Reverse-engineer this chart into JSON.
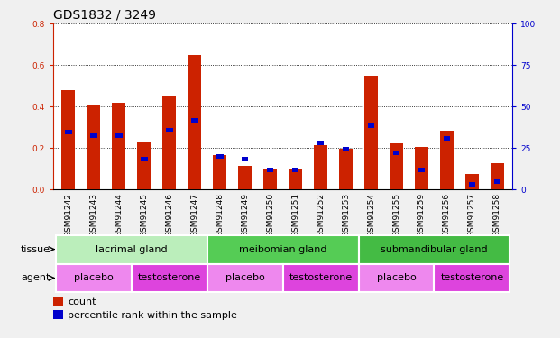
{
  "title": "GDS1832 / 3249",
  "samples": [
    "GSM91242",
    "GSM91243",
    "GSM91244",
    "GSM91245",
    "GSM91246",
    "GSM91247",
    "GSM91248",
    "GSM91249",
    "GSM91250",
    "GSM91251",
    "GSM91252",
    "GSM91253",
    "GSM91254",
    "GSM91255",
    "GSM91259",
    "GSM91256",
    "GSM91257",
    "GSM91258"
  ],
  "count_values": [
    0.48,
    0.41,
    0.42,
    0.23,
    0.45,
    0.65,
    0.165,
    0.115,
    0.095,
    0.095,
    0.215,
    0.195,
    0.55,
    0.22,
    0.205,
    0.285,
    0.075,
    0.125
  ],
  "pct_values": [
    0.275,
    0.26,
    0.26,
    0.145,
    0.285,
    0.335,
    0.16,
    0.145,
    0.095,
    0.095,
    0.225,
    0.195,
    0.305,
    0.175,
    0.095,
    0.245,
    0.025,
    0.035
  ],
  "ylim_left": [
    0,
    0.8
  ],
  "ylim_right": [
    0,
    100
  ],
  "yticks_left": [
    0,
    0.2,
    0.4,
    0.6,
    0.8
  ],
  "yticks_right": [
    0,
    25,
    50,
    75,
    100
  ],
  "bar_color": "#cc2200",
  "pct_color": "#0000cc",
  "bar_width": 0.55,
  "tissue_groups": [
    {
      "label": "lacrimal gland",
      "start": 0,
      "end": 6,
      "color": "#bbeebb"
    },
    {
      "label": "meibomian gland",
      "start": 6,
      "end": 12,
      "color": "#55cc55"
    },
    {
      "label": "submandibular gland",
      "start": 12,
      "end": 18,
      "color": "#44bb44"
    }
  ],
  "agent_groups": [
    {
      "label": "placebo",
      "start": 0,
      "end": 3,
      "color": "#ee88ee"
    },
    {
      "label": "testosterone",
      "start": 3,
      "end": 6,
      "color": "#dd44dd"
    },
    {
      "label": "placebo",
      "start": 6,
      "end": 9,
      "color": "#ee88ee"
    },
    {
      "label": "testosterone",
      "start": 9,
      "end": 12,
      "color": "#dd44dd"
    },
    {
      "label": "placebo",
      "start": 12,
      "end": 15,
      "color": "#ee88ee"
    },
    {
      "label": "testosterone",
      "start": 15,
      "end": 18,
      "color": "#dd44dd"
    }
  ],
  "tissue_label": "tissue",
  "agent_label": "agent",
  "legend_count": "count",
  "legend_pct": "percentile rank within the sample",
  "bar_color_hex": "#cc2200",
  "pct_color_hex": "#0000cc",
  "left_axis_color": "#cc2200",
  "right_axis_color": "#0000cc",
  "fig_bg_color": "#f0f0f0",
  "plot_bg_color": "#ffffff",
  "xtick_bg_color": "#c8c8c8",
  "title_fontsize": 10,
  "tick_fontsize": 6.5,
  "label_fontsize": 8,
  "row_label_fontsize": 8,
  "legend_fontsize": 8
}
